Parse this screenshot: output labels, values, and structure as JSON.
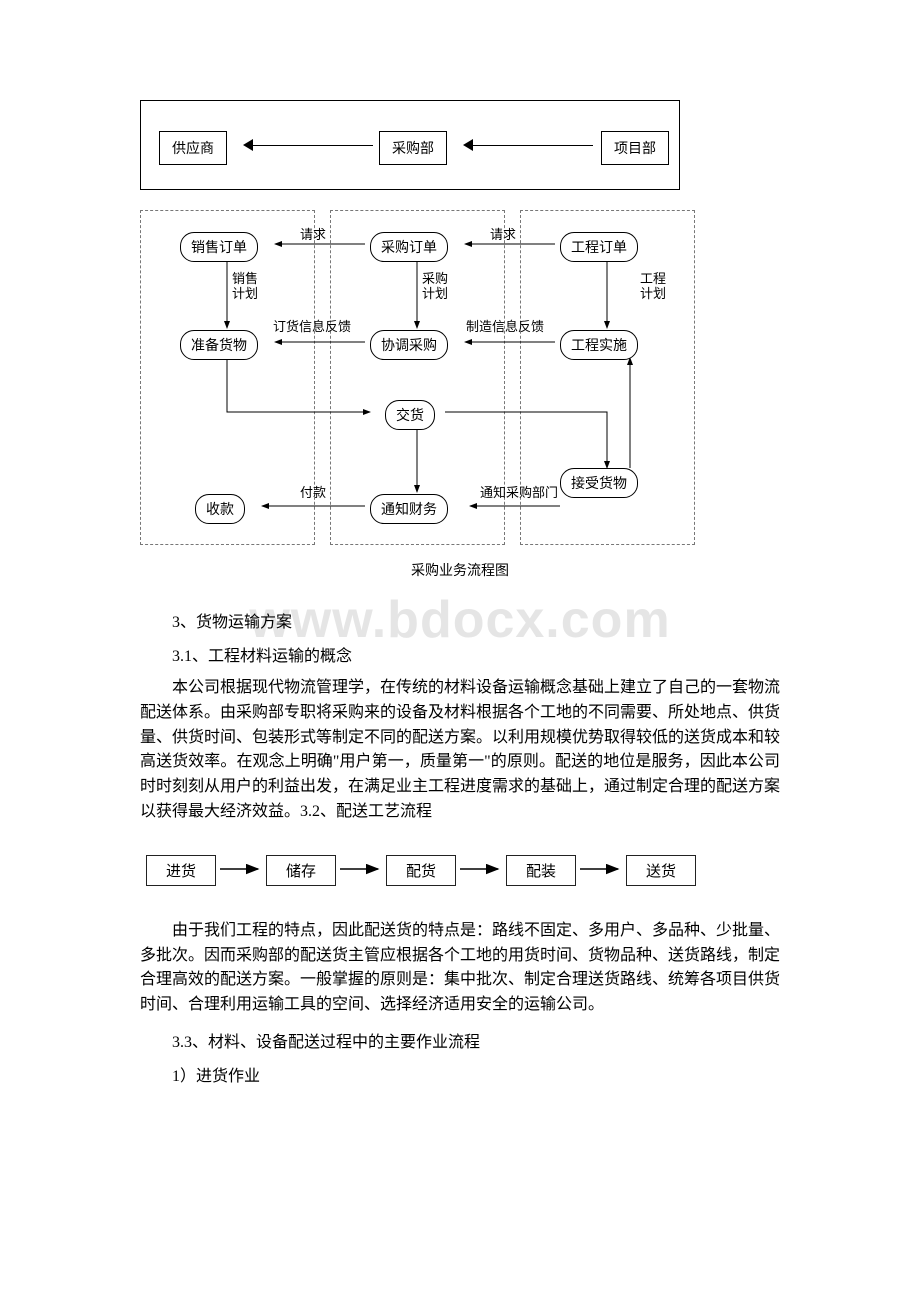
{
  "watermark": "www.bdocx.com",
  "diagram1": {
    "boxes": {
      "supplier": "供应商",
      "purchasing": "采购部",
      "project": "项目部"
    }
  },
  "diagram2": {
    "nodes": {
      "sales_order": "销售订单",
      "prepare_goods": "准备货物",
      "receipt": "收款",
      "purchase_order": "采购订单",
      "coord_purchase": "协调采购",
      "deliver": "交货",
      "notify_finance": "通知财务",
      "project_order": "工程订单",
      "project_impl": "工程实施",
      "accept_goods": "接受货物"
    },
    "labels": {
      "request1": "请求",
      "request2": "请求",
      "sales_plan": "销售\n计划",
      "purchase_plan": "采购\n计划",
      "project_plan": "工程\n计划",
      "order_feedback": "订货信息反馈",
      "mfg_feedback": "制造信息反馈",
      "payment": "付款",
      "notify_dept": "通知采购部门"
    },
    "caption": "采购业务流程图"
  },
  "text": {
    "h3": "3、货物运输方案",
    "h31": "3.1、工程材料运输的概念",
    "p1": "本公司根据现代物流管理学，在传统的材料设备运输概念基础上建立了自己的一套物流配送体系。由采购部专职将采购来的设备及材料根据各个工地的不同需要、所处地点、供货量、供货时间、包装形式等制定不同的配送方案。以利用规模优势取得较低的送货成本和较高送货效率。在观念上明确\"用户第一，质量第一\"的原则。配送的地位是服务，因此本公司时时刻刻从用户的利益出发，在满足业主工程进度需求的基础上，通过制定合理的配送方案以获得最大经济效益。3.2、配送工艺流程",
    "p2": "由于我们工程的特点，因此配送货的特点是：路线不固定、多用户、多品种、少批量、多批次。因而采购部的配送货主管应根据各个工地的用货时间、货物品种、送货路线，制定合理高效的配送方案。一般掌握的原则是：集中批次、制定合理送货路线、统筹各项目供货时间、合理利用运输工具的空间、选择经济适用安全的运输公司。",
    "h33": "3.3、材料、设备配送过程中的主要作业流程",
    "h33_1": "1）进货作业"
  },
  "diagram3": {
    "boxes": {
      "in": "进货",
      "store": "储存",
      "pick": "配货",
      "pack": "配装",
      "ship": "送货"
    }
  },
  "colors": {
    "text": "#000000",
    "border": "#000000",
    "dash": "#777777",
    "wm": "rgba(180,180,180,0.35)"
  }
}
